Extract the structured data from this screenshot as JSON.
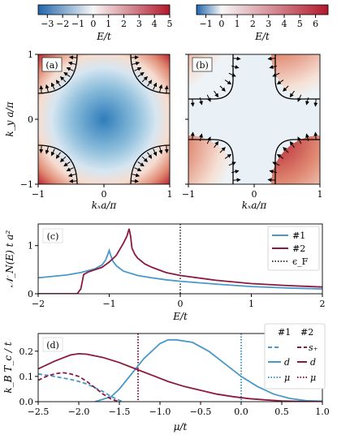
{
  "colorbars": [
    {
      "label": "E/t",
      "min": -3.6,
      "max": 5,
      "ticks": [
        "−3",
        "−2",
        "−1",
        "0",
        "1",
        "2",
        "3",
        "4",
        "5"
      ],
      "tick_values": [
        -3,
        -2,
        -1,
        0,
        1,
        2,
        3,
        4,
        5
      ]
    },
    {
      "label": "E/t",
      "min": -1.6,
      "max": 6.8,
      "ticks": [
        "−1",
        "0",
        "1",
        "2",
        "3",
        "4",
        "5",
        "6"
      ],
      "tick_values": [
        -1,
        0,
        1,
        2,
        3,
        4,
        5,
        6
      ]
    }
  ],
  "colormap": {
    "low": "#2166ac",
    "mid": "#f7f7f7",
    "high": "#b2182b"
  },
  "maps": [
    {
      "panel": "(a)",
      "xlabel": "kₓa/π",
      "ylabel": "k_y a/π",
      "x_ticks": [
        "−1",
        "0",
        "1"
      ],
      "y_ticks": [
        "−1",
        "0",
        "1"
      ]
    },
    {
      "panel": "(b)",
      "xlabel": "kₓa/π",
      "x_ticks": [
        "−1",
        "0",
        "1"
      ]
    }
  ],
  "chart_data": [
    {
      "type": "line",
      "panel": "(c)",
      "xlabel": "E/t",
      "ylabel": "𝒩_N(E) t a²",
      "xlim": [
        -2,
        2
      ],
      "ylim": [
        0,
        1.45
      ],
      "x_ticks": [
        "−2",
        "−1",
        "0",
        "1",
        "2"
      ],
      "x_tick_values": [
        -2,
        -1,
        0,
        1,
        2
      ],
      "y_ticks": [
        "0",
        "1"
      ],
      "y_tick_values": [
        0,
        1
      ],
      "legend": {
        "position": "top-right",
        "entries": [
          "#1",
          "#2",
          "ϵ_F"
        ]
      },
      "fermi_level": 0,
      "series": [
        {
          "name": "#1",
          "color": "#4a98c9",
          "x": [
            -2,
            -1.8,
            -1.6,
            -1.4,
            -1.2,
            -1.1,
            -1.05,
            -1.02,
            -1.0,
            -0.98,
            -0.95,
            -0.9,
            -0.8,
            -0.6,
            -0.4,
            -0.2,
            0,
            0.5,
            1.0,
            1.5,
            2.0
          ],
          "y": [
            0.33,
            0.36,
            0.39,
            0.44,
            0.52,
            0.6,
            0.7,
            0.82,
            0.9,
            0.8,
            0.68,
            0.58,
            0.47,
            0.38,
            0.33,
            0.29,
            0.26,
            0.2,
            0.15,
            0.12,
            0.1
          ]
        },
        {
          "name": "#2",
          "color": "#8b1a3e",
          "x": [
            -2,
            -1.45,
            -1.4,
            -1.38,
            -1.36,
            -1.3,
            -1.1,
            -1.0,
            -0.9,
            -0.8,
            -0.75,
            -0.72,
            -0.7,
            -0.68,
            -0.64,
            -0.6,
            -0.5,
            -0.4,
            -0.2,
            0,
            0.5,
            1.0,
            1.5,
            2.0
          ],
          "y": [
            0,
            0,
            0.1,
            0.25,
            0.4,
            0.45,
            0.55,
            0.66,
            0.8,
            1.05,
            1.2,
            1.35,
            1.2,
            0.95,
            0.82,
            0.74,
            0.62,
            0.55,
            0.44,
            0.38,
            0.28,
            0.21,
            0.17,
            0.14
          ]
        }
      ]
    },
    {
      "type": "line",
      "panel": "(d)",
      "xlabel": "μ/t",
      "ylabel": "k_B T_c / t",
      "xlim": [
        -2.5,
        1.0
      ],
      "ylim": [
        0,
        0.27
      ],
      "x_ticks": [
        "−2.5",
        "−2.0",
        "−1.5",
        "−1.0",
        "−0.5",
        "0.0",
        "0.5",
        "1.0"
      ],
      "x_tick_values": [
        -2.5,
        -2,
        -1.5,
        -1,
        -0.5,
        0,
        0.5,
        1
      ],
      "y_ticks": [
        "0.0",
        "0.1",
        "0.2"
      ],
      "y_tick_values": [
        0,
        0.1,
        0.2
      ],
      "legend": {
        "position": "top-right",
        "headers": [
          "#1",
          "#2"
        ],
        "rows": [
          "s₊",
          "d",
          "μ"
        ]
      },
      "mu_lines": [
        {
          "series": "#1",
          "x": 0.0
        },
        {
          "series": "#2",
          "x": -1.27
        }
      ],
      "series": [
        {
          "name": "#1 s₊",
          "color": "#4a98c9",
          "dash": "5,3",
          "x": [
            -2.5,
            -2.3,
            -2.1,
            -2.0,
            -1.9,
            -1.8,
            -1.7,
            -1.6,
            -1.5,
            -1.45
          ],
          "y": [
            0.11,
            0.1,
            0.088,
            0.08,
            0.07,
            0.055,
            0.04,
            0.02,
            0.005,
            0
          ]
        },
        {
          "name": "#1 d",
          "color": "#4a98c9",
          "dash": "",
          "x": [
            -1.8,
            -1.6,
            -1.5,
            -1.4,
            -1.2,
            -1.0,
            -0.9,
            -0.8,
            -0.6,
            -0.4,
            -0.2,
            0.0,
            0.2,
            0.4,
            0.6,
            0.8,
            1.0
          ],
          "y": [
            0,
            0.02,
            0.05,
            0.09,
            0.17,
            0.23,
            0.245,
            0.245,
            0.235,
            0.2,
            0.15,
            0.1,
            0.06,
            0.03,
            0.013,
            0.004,
            0.002
          ]
        },
        {
          "name": "#2 s₊",
          "color": "#8b1a3e",
          "dash": "5,3",
          "x": [
            -2.5,
            -2.4,
            -2.3,
            -2.2,
            -2.1,
            -2.0,
            -1.9,
            -1.8,
            -1.7,
            -1.6,
            -1.5
          ],
          "y": [
            0.085,
            0.1,
            0.11,
            0.115,
            0.11,
            0.1,
            0.08,
            0.055,
            0.03,
            0.01,
            0
          ]
        },
        {
          "name": "#2 d",
          "color": "#8b1a3e",
          "dash": "",
          "x": [
            -2.5,
            -2.3,
            -2.1,
            -2.0,
            -1.9,
            -1.7,
            -1.5,
            -1.3,
            -1.1,
            -0.9,
            -0.7,
            -0.5,
            -0.3,
            -0.1,
            0.1,
            0.3,
            0.5,
            0.7,
            1.0
          ],
          "y": [
            0.13,
            0.16,
            0.185,
            0.19,
            0.188,
            0.175,
            0.155,
            0.13,
            0.105,
            0.08,
            0.06,
            0.045,
            0.03,
            0.02,
            0.012,
            0.007,
            0.003,
            0.001,
            0
          ]
        }
      ]
    }
  ]
}
